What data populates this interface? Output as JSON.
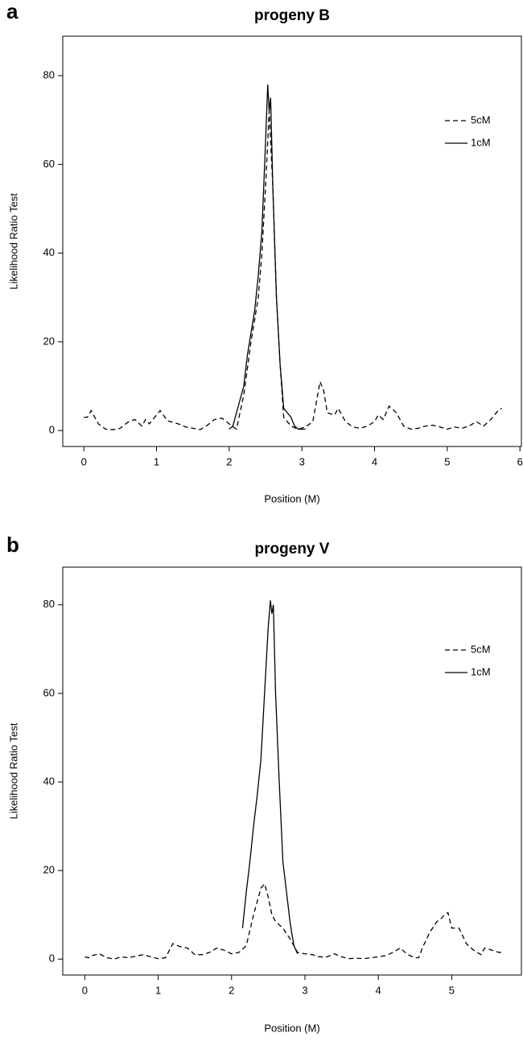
{
  "chart_data": [
    {
      "type": "line",
      "panel_label": "a",
      "title": "progeny B",
      "xlabel": "Position (M)",
      "ylabel": "Likelihood Ratio Test",
      "xlim": [
        -0.29,
        6.02
      ],
      "ylim": [
        -3.6,
        88.9
      ],
      "xticks": [
        0,
        1,
        2,
        3,
        4,
        5,
        6
      ],
      "yticks": [
        0,
        20,
        40,
        60,
        80
      ],
      "legend": "right",
      "series": [
        {
          "name": "5cM",
          "color": "#000000",
          "linestyle": "dashed",
          "x": [
            0,
            0.05,
            0.1,
            0.2,
            0.3,
            0.4,
            0.5,
            0.6,
            0.7,
            0.8,
            0.85,
            0.9,
            0.95,
            1.05,
            1.15,
            1.3,
            1.4,
            1.5,
            1.6,
            1.7,
            1.8,
            1.9,
            2.0,
            2.1,
            2.2,
            2.3,
            2.4,
            2.45,
            2.5,
            2.55,
            2.6,
            2.65,
            2.7,
            2.75,
            2.85,
            2.95,
            3.05,
            3.15,
            3.25,
            3.3,
            3.35,
            3.45,
            3.5,
            3.6,
            3.7,
            3.8,
            3.9,
            4.0,
            4.05,
            4.12,
            4.2,
            4.3,
            4.4,
            4.5,
            4.6,
            4.7,
            4.8,
            4.9,
            5.0,
            5.1,
            5.2,
            5.3,
            5.4,
            5.5,
            5.6,
            5.7,
            5.75
          ],
          "values": [
            3,
            3,
            4.5,
            1.5,
            0.3,
            0.2,
            0.5,
            1.8,
            2.5,
            1,
            2.5,
            1.5,
            2.5,
            4.5,
            2.2,
            1.5,
            0.8,
            0.5,
            0.2,
            1.2,
            2.5,
            2.8,
            1.5,
            0.3,
            8,
            20,
            30,
            40,
            55,
            72,
            55,
            30,
            15,
            3,
            1,
            0.3,
            0.8,
            2,
            11,
            9,
            4,
            3.5,
            5,
            2,
            0.8,
            0.5,
            1,
            2,
            3.5,
            2.5,
            5.5,
            4,
            1,
            0.3,
            0.5,
            1,
            1.2,
            0.8,
            0.3,
            0.8,
            0.5,
            1,
            2,
            1,
            2.5,
            4.5,
            5
          ]
        },
        {
          "name": "1cM",
          "color": "#000000",
          "linestyle": "solid",
          "x": [
            2.0,
            2.05,
            2.1,
            2.2,
            2.25,
            2.3,
            2.35,
            2.4,
            2.45,
            2.5,
            2.53,
            2.55,
            2.57,
            2.6,
            2.65,
            2.7,
            2.75,
            2.8,
            2.85,
            2.9,
            2.95,
            3.05
          ],
          "values": [
            0.3,
            1,
            4,
            10,
            17,
            22,
            27,
            35,
            45,
            65,
            78,
            72,
            75,
            55,
            30,
            15,
            5,
            4,
            3,
            1,
            0.3,
            0.3
          ]
        }
      ]
    },
    {
      "type": "line",
      "panel_label": "b",
      "title": "progeny V",
      "xlabel": "Position (M)",
      "ylabel": "Likelihood Ratio Test",
      "xlim": [
        -0.3,
        5.95
      ],
      "ylim": [
        -3.6,
        88.5
      ],
      "xticks": [
        0,
        1,
        2,
        3,
        4,
        5
      ],
      "yticks": [
        0,
        20,
        40,
        60,
        80
      ],
      "legend": "right",
      "series": [
        {
          "name": "5cM",
          "color": "#000000",
          "linestyle": "dashed",
          "x": [
            0,
            0.05,
            0.1,
            0.2,
            0.3,
            0.4,
            0.5,
            0.6,
            0.7,
            0.8,
            0.9,
            1.0,
            1.1,
            1.2,
            1.3,
            1.4,
            1.5,
            1.6,
            1.7,
            1.8,
            1.9,
            2.0,
            2.1,
            2.2,
            2.3,
            2.4,
            2.45,
            2.5,
            2.55,
            2.6,
            2.7,
            2.8,
            2.9,
            3.0,
            3.1,
            3.2,
            3.3,
            3.4,
            3.5,
            3.6,
            3.7,
            3.8,
            3.9,
            4.0,
            4.1,
            4.2,
            4.3,
            4.4,
            4.5,
            4.55,
            4.6,
            4.7,
            4.8,
            4.85,
            4.9,
            4.95,
            5.0,
            5.1,
            5.2,
            5.3,
            5.4,
            5.45,
            5.55,
            5.65,
            5.7
          ],
          "values": [
            0.5,
            0.3,
            0.8,
            1.2,
            0.3,
            0,
            0.5,
            0.3,
            0.7,
            1,
            0.5,
            0.1,
            0.3,
            3.5,
            2.8,
            2.5,
            1,
            1,
            1.5,
            2.5,
            2,
            1.2,
            1.5,
            3,
            10,
            16,
            17,
            14,
            10,
            8.5,
            7,
            4.5,
            1.5,
            1.2,
            1,
            0.5,
            0.5,
            1.2,
            0.5,
            0.1,
            0.2,
            0.1,
            0.3,
            0.5,
            0.8,
            1.5,
            2.5,
            1,
            0.3,
            0.3,
            2.5,
            6,
            8.5,
            9,
            10,
            10.5,
            7,
            7,
            3.5,
            2,
            1,
            2.5,
            2,
            1.5,
            1.5
          ]
        },
        {
          "name": "1cM",
          "color": "#000000",
          "linestyle": "solid",
          "x": [
            2.15,
            2.2,
            2.25,
            2.3,
            2.35,
            2.4,
            2.45,
            2.5,
            2.53,
            2.55,
            2.57,
            2.6,
            2.65,
            2.7,
            2.75,
            2.8,
            2.85,
            2.9
          ],
          "values": [
            7,
            15,
            22,
            30,
            37,
            45,
            60,
            75,
            81,
            78,
            80,
            60,
            40,
            22,
            15,
            8,
            3,
            1.2
          ]
        }
      ]
    }
  ]
}
